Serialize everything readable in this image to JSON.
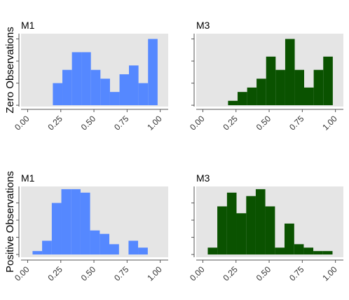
{
  "chart_data": [
    {
      "type": "histogram",
      "title": "M1",
      "ylabel": "Zero Observations",
      "color": "#5588ff",
      "bins": [
        0.19,
        0.262,
        0.334,
        0.405,
        0.477,
        0.549,
        0.621,
        0.693,
        0.764,
        0.836,
        0.908,
        0.98
      ],
      "values": [
        5,
        8,
        12,
        12,
        8,
        6,
        3,
        7,
        9,
        5,
        15
      ],
      "xlim": [
        -0.05,
        1.06
      ],
      "ylim": [
        -0.3,
        16.2
      ],
      "xticks": [
        {
          "value": 0,
          "label": "0.00"
        },
        {
          "value": 0.25,
          "label": "0.25"
        },
        {
          "value": 0.5,
          "label": "0.50"
        },
        {
          "value": 0.75,
          "label": "0.75"
        },
        {
          "value": 1,
          "label": "1.00"
        }
      ],
      "yticks": [
        0,
        5,
        10,
        15
      ]
    },
    {
      "type": "histogram",
      "title": "M3",
      "color": "#0a5200",
      "bins": [
        0.19,
        0.262,
        0.334,
        0.405,
        0.477,
        0.549,
        0.621,
        0.693,
        0.764,
        0.836,
        0.908,
        0.98
      ],
      "values": [
        1,
        3,
        4,
        6,
        11,
        8,
        15,
        8,
        4,
        8,
        11
      ],
      "xlim": [
        -0.05,
        1.06
      ],
      "ylim": [
        -0.3,
        16.2
      ],
      "xticks": [
        {
          "value": 0,
          "label": "0.00"
        },
        {
          "value": 0.25,
          "label": "0.25"
        },
        {
          "value": 0.5,
          "label": "0.50"
        },
        {
          "value": 0.75,
          "label": "0.75"
        },
        {
          "value": 1,
          "label": "1.00"
        }
      ],
      "yticks": [
        0,
        5,
        10,
        15
      ]
    },
    {
      "type": "histogram",
      "title": "M1",
      "ylabel": "Positive Observations",
      "color": "#5588ff",
      "bins": [
        0.037,
        0.109,
        0.182,
        0.254,
        0.327,
        0.399,
        0.471,
        0.544,
        0.616,
        0.689,
        0.761,
        0.833,
        0.906
      ],
      "values": [
        1,
        4,
        15,
        19,
        19,
        18,
        7,
        6,
        3,
        0,
        4,
        2
      ],
      "xlim": [
        -0.05,
        1.06
      ],
      "ylim": [
        -0.8,
        19.8
      ],
      "xticks": [
        {
          "value": 0,
          "label": "0.00"
        },
        {
          "value": 0.25,
          "label": "0.25"
        },
        {
          "value": 0.5,
          "label": "0.50"
        },
        {
          "value": 0.75,
          "label": "0.75"
        },
        {
          "value": 1,
          "label": "1.00"
        }
      ],
      "yticks": [
        0,
        5,
        10,
        15
      ]
    },
    {
      "type": "histogram",
      "title": "M3",
      "color": "#0a5200",
      "bins": [
        0.037,
        0.109,
        0.182,
        0.254,
        0.327,
        0.399,
        0.471,
        0.544,
        0.616,
        0.689,
        0.761,
        0.833,
        0.906,
        0.978
      ],
      "values": [
        2,
        14,
        18,
        12,
        17,
        19,
        14,
        2,
        9,
        3,
        2,
        1,
        1
      ],
      "xlim": [
        -0.05,
        1.06
      ],
      "ylim": [
        -0.8,
        19.8
      ],
      "xticks": [
        {
          "value": 0,
          "label": "0.00"
        },
        {
          "value": 0.25,
          "label": "0.25"
        },
        {
          "value": 0.5,
          "label": "0.50"
        },
        {
          "value": 0.75,
          "label": "0.75"
        },
        {
          "value": 1,
          "label": "1.00"
        }
      ],
      "yticks": [
        0,
        5,
        10,
        15
      ]
    }
  ]
}
